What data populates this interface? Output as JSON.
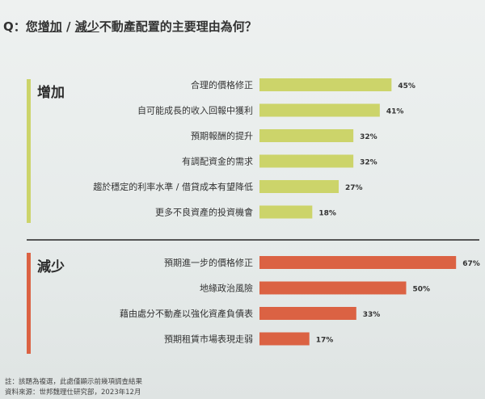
{
  "question": {
    "prefix": "Q：您",
    "word_increase": "增加",
    "slash": " / ",
    "word_decrease": "減少",
    "suffix": "不動產配置的主要理由為何？"
  },
  "colors": {
    "increase": "#ccd46a",
    "decrease": "#db6243",
    "divider": "#555555"
  },
  "chart_data": [
    {
      "type": "bar",
      "orientation": "horizontal",
      "group_label": "增加",
      "categories": [
        "合理的價格修正",
        "自可能成長的收入回報中獲利",
        "預期報酬的提升",
        "有調配資金的需求",
        "趨於穩定的利率水準 / 借貸成本有望降低",
        "更多不良資產的投資機會"
      ],
      "values": [
        45,
        41,
        32,
        32,
        27,
        18
      ],
      "value_labels": [
        "45%",
        "41%",
        "32%",
        "32%",
        "27%",
        "18%"
      ],
      "xlim": [
        0,
        70
      ]
    },
    {
      "type": "bar",
      "orientation": "horizontal",
      "group_label": "減少",
      "categories": [
        "預期進一步的價格修正",
        "地緣政治風險",
        "藉由處分不動產以強化資產負債表",
        "預期租賃市場表現走弱"
      ],
      "values": [
        67,
        50,
        33,
        17
      ],
      "value_labels": [
        "67%",
        "50%",
        "33%",
        "17%"
      ],
      "xlim": [
        0,
        70
      ]
    }
  ],
  "footnotes": [
    "註：該題為複選，此處僅顯示前幾項調查結果",
    "資料來源：世邦魏理仕研究部，2023年12月"
  ]
}
